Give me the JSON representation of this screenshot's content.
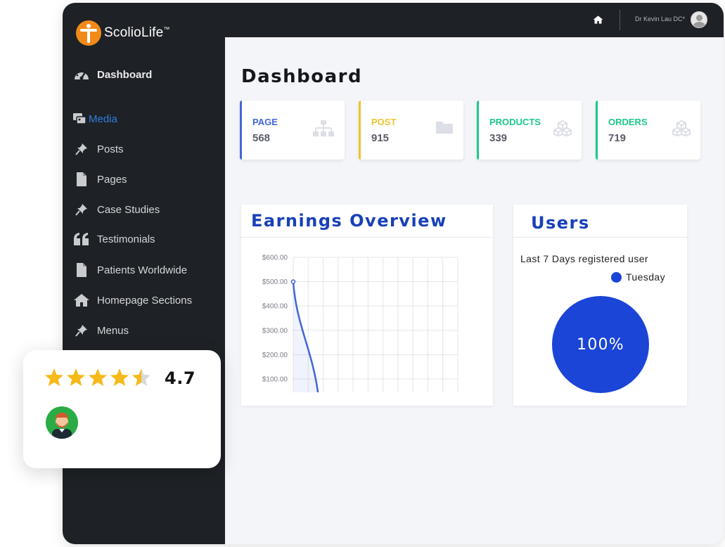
{
  "app": {
    "logo_text": "ScolioLife",
    "logo_tm": "™"
  },
  "sidebar": {
    "items": [
      {
        "label": "Dashboard",
        "icon": "gauge-icon"
      },
      {
        "label": "Media",
        "icon": "media-icon"
      },
      {
        "label": "Posts",
        "icon": "pin-icon"
      },
      {
        "label": "Pages",
        "icon": "file-icon"
      },
      {
        "label": "Case Studies",
        "icon": "pin-icon"
      },
      {
        "label": "Testimonials",
        "icon": "quote-icon"
      },
      {
        "label": "Patients Worldwide",
        "icon": "file-icon"
      },
      {
        "label": "Homepage Sections",
        "icon": "home-icon"
      },
      {
        "label": "Menus",
        "icon": "pin-icon"
      }
    ]
  },
  "topbar": {
    "user_name": "Dr Kevin Lau DC*",
    "home_icon": "home-icon",
    "avatar_icon": "user-avatar-icon"
  },
  "main": {
    "title": "Dashboard",
    "stats": [
      {
        "label": "PAGE",
        "value": "568",
        "color": "#4266d6",
        "icon": "sitemap-icon"
      },
      {
        "label": "POST",
        "value": "915",
        "color": "#f2c230",
        "icon": "folder-icon"
      },
      {
        "label": "PRODUCTS",
        "value": "339",
        "color": "#1cc88a",
        "icon": "cubes-icon"
      },
      {
        "label": "ORDERS",
        "value": "719",
        "color": "#1cc88a",
        "icon": "cubes-icon"
      }
    ]
  },
  "earnings": {
    "title": "Earnings Overview"
  },
  "users": {
    "title": "Users",
    "subtitle": "Last 7 Days registered user",
    "legend": "Tuesday",
    "percent": "100%",
    "pie_color": "#1a45d6",
    "share": 1.0
  },
  "review": {
    "rating": "4.7",
    "stars": 4.7
  },
  "chart_data": {
    "type": "line",
    "title": "Earnings Overview",
    "xlabel": "",
    "ylabel": "",
    "yticks": [
      "$100.00",
      "$200.00",
      "$300.00",
      "$400.00",
      "$500.00",
      "$600.00"
    ],
    "ylim": [
      45,
      600
    ],
    "grid": true,
    "series": [
      {
        "values": [
          {
            "x": 0,
            "y": 500
          },
          {
            "x": 0.15,
            "y": 45
          }
        ]
      }
    ]
  },
  "colors": {
    "sidebar": "#1e2125",
    "accent": "#1840b8",
    "active_nav": "#2f7fe0"
  }
}
